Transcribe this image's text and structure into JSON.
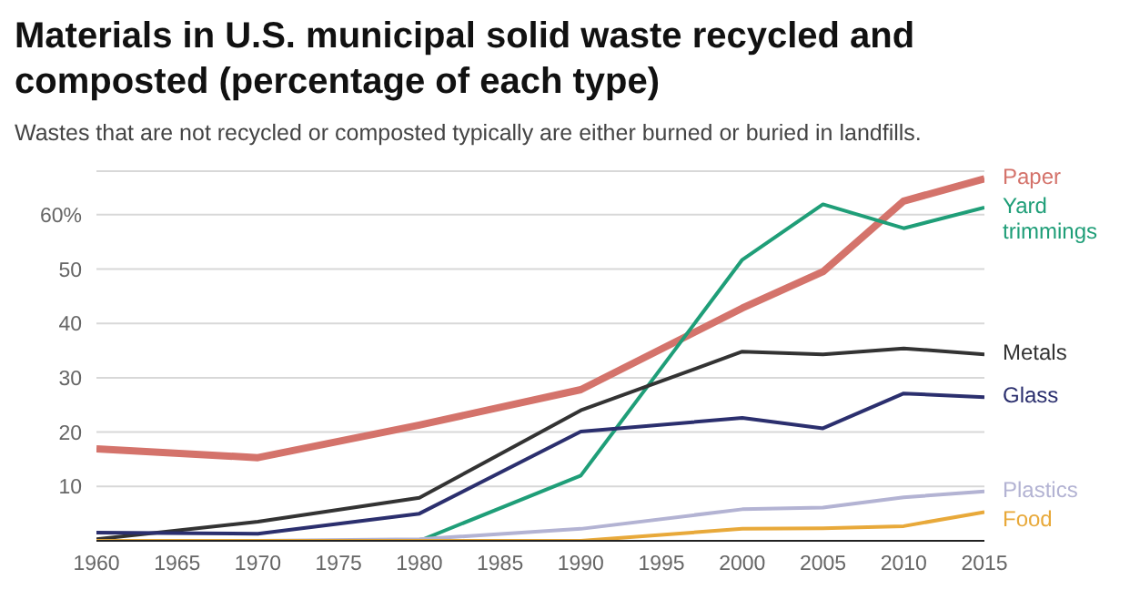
{
  "chart_data": {
    "type": "line",
    "title": "Materials in U.S. municipal solid waste recycled and composted (percentage of each type)",
    "subtitle": "Wastes that are not recycled or composted typically are either burned or buried in landfills.",
    "x": [
      1960,
      1970,
      1980,
      1990,
      2000,
      2005,
      2010,
      2015
    ],
    "series": [
      {
        "name": "Paper",
        "color": "#d4736b",
        "values": [
          16.9,
          15.3,
          21.3,
          27.8,
          42.8,
          49.5,
          62.5,
          66.6
        ]
      },
      {
        "name": "Yard trimmings",
        "color": "#1f9e78",
        "values": [
          0,
          0,
          0,
          12.0,
          51.7,
          61.9,
          57.5,
          61.3
        ]
      },
      {
        "name": "Metals",
        "color": "#333333",
        "values": [
          0.3,
          3.5,
          7.9,
          24.0,
          34.8,
          34.3,
          35.4,
          34.3
        ]
      },
      {
        "name": "Glass",
        "color": "#2b2f6e",
        "values": [
          1.5,
          1.3,
          5.0,
          20.1,
          22.6,
          20.7,
          27.1,
          26.4
        ]
      },
      {
        "name": "Plastics",
        "color": "#b3b3d3",
        "values": [
          0,
          0,
          0.3,
          2.2,
          5.8,
          6.1,
          8.0,
          9.1
        ]
      },
      {
        "name": "Food",
        "color": "#e8a93a",
        "values": [
          0,
          0,
          0,
          0,
          2.2,
          2.3,
          2.7,
          5.3
        ]
      }
    ],
    "xlim": [
      1960,
      2015
    ],
    "xticks": [
      1960,
      1965,
      1970,
      1975,
      1980,
      1985,
      1990,
      1995,
      2000,
      2005,
      2010,
      2015
    ],
    "ylim": [
      0,
      68
    ],
    "yticks": [
      {
        "value": 0,
        "label": null
      },
      10,
      20,
      30,
      40,
      50,
      {
        "value": 60,
        "label": "60%"
      }
    ],
    "grid": "y",
    "legend": false,
    "marker": "none",
    "line_style": "solid"
  }
}
